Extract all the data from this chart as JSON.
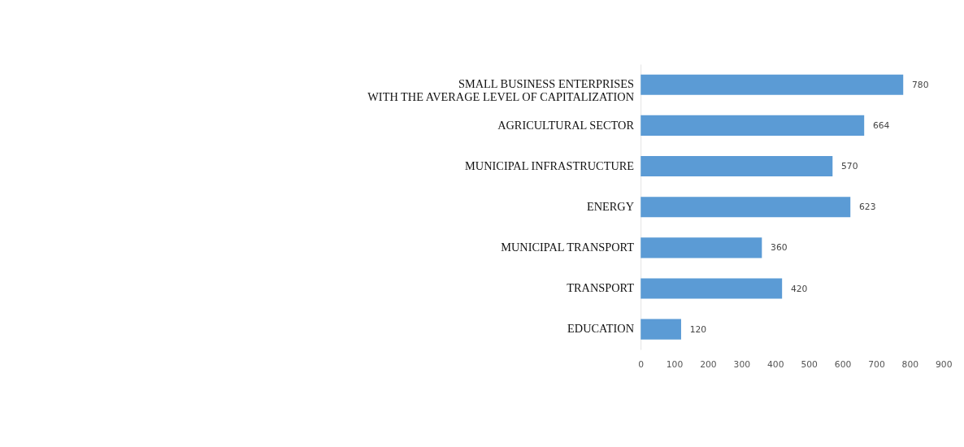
{
  "chart_data": {
    "type": "bar",
    "orientation": "horizontal",
    "categories": [
      "SMALL BUSINESS ENTERPRISES\nWITH THE AVERAGE LEVEL OF CAPITALIZATION",
      "AGRICULTURAL SECTOR",
      "MUNICIPAL INFRASTRUCTURE",
      "ENERGY",
      "MUNICIPAL TRANSPORT",
      "TRANSPORT",
      "EDUCATION"
    ],
    "values": [
      780,
      664,
      570,
      623,
      360,
      420,
      120
    ],
    "color": "#5b9bd5",
    "xlim": [
      0,
      900
    ],
    "xticks": [
      0,
      100,
      200,
      300,
      400,
      500,
      600,
      700,
      800,
      900
    ],
    "data_labels": true,
    "grid": false
  }
}
